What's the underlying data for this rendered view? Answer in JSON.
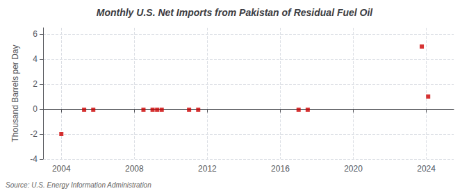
{
  "chart_data": {
    "type": "scatter",
    "title": "Monthly U.S. Net Imports from Pakistan of Residual Fuel Oil",
    "ylabel": "Thousand Barrels per Day",
    "source": "Source: U.S. Energy Information Administration",
    "x": [
      2004.0,
      2005.25,
      2005.75,
      2008.5,
      2009.0,
      2009.25,
      2009.5,
      2011.0,
      2011.5,
      2017.0,
      2017.5,
      2023.75,
      2024.1
    ],
    "values": [
      -2.0,
      -0.05,
      -0.05,
      -0.05,
      -0.05,
      -0.05,
      -0.05,
      -0.05,
      -0.05,
      -0.05,
      -0.05,
      5.0,
      1.0
    ],
    "color": "#cc0000",
    "marker": "square",
    "xlim": [
      2003.0,
      2025.5
    ],
    "ylim": [
      -4,
      6.5
    ],
    "xticks": [
      2004,
      2008,
      2012,
      2016,
      2020,
      2024
    ],
    "yticks": [
      -4,
      -2,
      0,
      2,
      4,
      6
    ],
    "grid": true
  }
}
